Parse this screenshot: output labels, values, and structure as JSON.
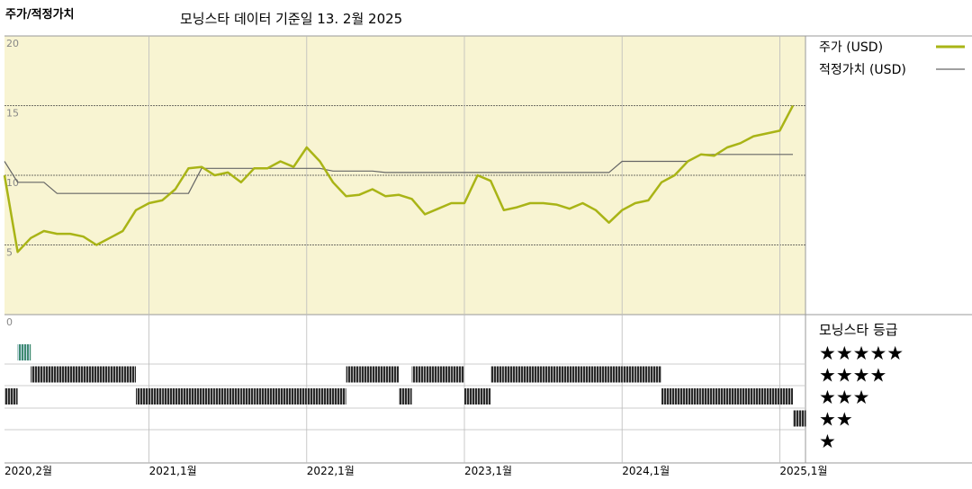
{
  "chart_data": {
    "type": "line",
    "title": "주가/적정가치",
    "subtitle": "모닝스타 데이터 기준일 13. 2월 2025",
    "x": [
      "2020-02",
      "2020-03",
      "2020-04",
      "2020-05",
      "2020-06",
      "2020-07",
      "2020-08",
      "2020-09",
      "2020-10",
      "2020-11",
      "2020-12",
      "2021-01",
      "2021-02",
      "2021-03",
      "2021-04",
      "2021-05",
      "2021-06",
      "2021-07",
      "2021-08",
      "2021-09",
      "2021-10",
      "2021-11",
      "2021-12",
      "2022-01",
      "2022-02",
      "2022-03",
      "2022-04",
      "2022-05",
      "2022-06",
      "2022-07",
      "2022-08",
      "2022-09",
      "2022-10",
      "2022-11",
      "2022-12",
      "2023-01",
      "2023-02",
      "2023-03",
      "2023-04",
      "2023-05",
      "2023-06",
      "2023-07",
      "2023-08",
      "2023-09",
      "2023-10",
      "2023-11",
      "2023-12",
      "2024-01",
      "2024-02",
      "2024-03",
      "2024-04",
      "2024-05",
      "2024-06",
      "2024-07",
      "2024-08",
      "2024-09",
      "2024-10",
      "2024-11",
      "2024-12",
      "2025-01",
      "2025-02"
    ],
    "series": [
      {
        "name": "주가 (USD)",
        "color": "#a9b416",
        "values": [
          10,
          4.5,
          5.5,
          6,
          5.8,
          5.8,
          5.6,
          5,
          5.5,
          6,
          7.5,
          8,
          8.2,
          9,
          10.5,
          10.6,
          10,
          10.2,
          9.5,
          10.5,
          10.5,
          11,
          10.6,
          12,
          11,
          9.5,
          8.5,
          8.6,
          9,
          8.5,
          8.6,
          8.3,
          7.2,
          7.6,
          8,
          8,
          10,
          9.6,
          7.5,
          7.7,
          8,
          8,
          7.9,
          7.6,
          8,
          7.5,
          6.6,
          7.5,
          8,
          8.2,
          9.5,
          10,
          11,
          11.5,
          11.4,
          12,
          12.3,
          12.8,
          13,
          13.2,
          15
        ]
      },
      {
        "name": "적정가치 (USD)",
        "color": "#666666",
        "values": [
          11,
          9.5,
          9.5,
          9.5,
          8.7,
          8.7,
          8.7,
          8.7,
          8.7,
          8.7,
          8.7,
          8.7,
          8.7,
          8.7,
          8.7,
          10.5,
          10.5,
          10.5,
          10.5,
          10.5,
          10.5,
          10.5,
          10.5,
          10.5,
          10.5,
          10.3,
          10.3,
          10.3,
          10.3,
          10.2,
          10.2,
          10.2,
          10.2,
          10.2,
          10.2,
          10.2,
          10.2,
          10.2,
          10.2,
          10.2,
          10.2,
          10.2,
          10.2,
          10.2,
          10.2,
          10.2,
          10.2,
          11,
          11,
          11,
          11,
          11,
          11,
          11.5,
          11.5,
          11.5,
          11.5,
          11.5,
          11.5,
          11.5,
          11.5
        ]
      }
    ],
    "ylim": [
      0,
      20
    ],
    "yticks": [
      0,
      5,
      10,
      15,
      20
    ],
    "xticks": [
      {
        "value": "2020-02",
        "label": "2020,2월"
      },
      {
        "value": "2021-01",
        "label": "2021,1월"
      },
      {
        "value": "2022-01",
        "label": "2022,1월"
      },
      {
        "value": "2023-01",
        "label": "2023,1월"
      },
      {
        "value": "2024-01",
        "label": "2024,1월"
      },
      {
        "value": "2025-01",
        "label": "2025,1월"
      }
    ],
    "grid": true,
    "background": "#f8f4d2",
    "ratings": {
      "title": "모닝스타 등급",
      "levels": [
        {
          "value": 5,
          "label": "★★★★★"
        },
        {
          "value": 4,
          "label": "★★★★"
        },
        {
          "value": 3,
          "label": "★★★"
        },
        {
          "value": 2,
          "label": "★★"
        },
        {
          "value": 1,
          "label": "★"
        }
      ],
      "colors": {
        "5": "#3e8a70",
        "default": "#2a2a2a"
      },
      "values": [
        3,
        5,
        4,
        4,
        4,
        4,
        4,
        4,
        4,
        4,
        3,
        3,
        3,
        3,
        3,
        3,
        3,
        3,
        3,
        3,
        3,
        3,
        3,
        3,
        3,
        3,
        4,
        4,
        4,
        4,
        3,
        4,
        4,
        4,
        4,
        3,
        3,
        4,
        4,
        4,
        4,
        4,
        4,
        4,
        4,
        4,
        4,
        4,
        4,
        4,
        3,
        3,
        3,
        3,
        3,
        3,
        3,
        3,
        3,
        3,
        2
      ]
    }
  }
}
